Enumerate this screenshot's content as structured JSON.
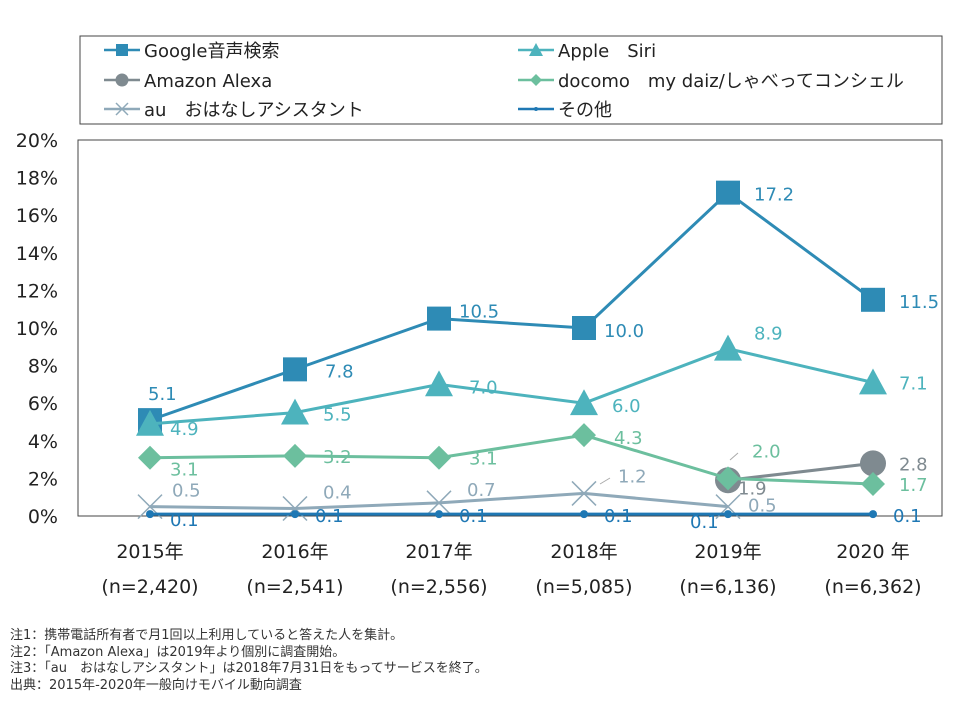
{
  "chart_data": {
    "type": "line",
    "categories": [
      "2015年",
      "2016年",
      "2017年",
      "2018年",
      "2019年",
      "2020 年"
    ],
    "category_sub": [
      "(n=2,420)",
      "(n=2,541)",
      "(n=2,556)",
      "(n=5,085)",
      "(n=6,136)",
      "(n=6,362)"
    ],
    "ylim": [
      0,
      20
    ],
    "yticks": [
      "0%",
      "2%",
      "4%",
      "6%",
      "8%",
      "10%",
      "12%",
      "14%",
      "16%",
      "18%",
      "20%"
    ],
    "grid": false,
    "legend_position": "top",
    "series": [
      {
        "name": "Google音声検索",
        "color": "#2e8bb5",
        "marker": "square",
        "values": [
          5.1,
          7.8,
          10.5,
          10.0,
          17.2,
          11.5
        ],
        "labels": [
          "5.1",
          "7.8",
          "10.5",
          "10.0",
          "17.2",
          "11.5"
        ]
      },
      {
        "name": "Apple　Siri",
        "color": "#4db3bd",
        "marker": "triangle",
        "values": [
          4.9,
          5.5,
          7.0,
          6.0,
          8.9,
          7.1
        ],
        "labels": [
          "4.9",
          "5.5",
          "7.0",
          "6.0",
          "8.9",
          "7.1"
        ]
      },
      {
        "name": "Amazon Alexa",
        "color": "#7f8a90",
        "marker": "circle",
        "values": [
          null,
          null,
          null,
          null,
          1.9,
          2.8
        ],
        "labels": [
          "",
          "",
          "",
          "",
          "1.9",
          "2.8"
        ]
      },
      {
        "name": "docomo　my daiz/しゃべってコンシェル",
        "color": "#6cbf9e",
        "marker": "diamond",
        "values": [
          3.1,
          3.2,
          3.1,
          4.3,
          2.0,
          1.7
        ],
        "labels": [
          "3.1",
          "3.2",
          "3.1",
          "4.3",
          "2.0",
          "1.7"
        ]
      },
      {
        "name": "au　おはなしアシスタント",
        "color": "#8fa9b9",
        "marker": "x",
        "values": [
          0.5,
          0.4,
          0.7,
          1.2,
          0.5,
          null
        ],
        "labels": [
          "0.5",
          "0.4",
          "0.7",
          "1.2",
          "0.5",
          ""
        ]
      },
      {
        "name": "その他",
        "color": "#1f78b4",
        "marker": "dot",
        "values": [
          0.1,
          0.1,
          0.1,
          0.1,
          0.1,
          0.1
        ],
        "labels": [
          "0.1",
          "0.1",
          "0.1",
          "0.1",
          "0.1",
          "0.1"
        ]
      }
    ]
  },
  "notes": [
    "注1：携帯電話所有者で月1回以上利用していると答えた人を集計。",
    "注2：「Amazon Alexa」は2019年より個別に調査開始。",
    "注3：「au　おはなしアシスタント」は2018年7月31日をもってサービスを終了。",
    "出典：2015年-2020年一般向けモバイル動向調査"
  ]
}
